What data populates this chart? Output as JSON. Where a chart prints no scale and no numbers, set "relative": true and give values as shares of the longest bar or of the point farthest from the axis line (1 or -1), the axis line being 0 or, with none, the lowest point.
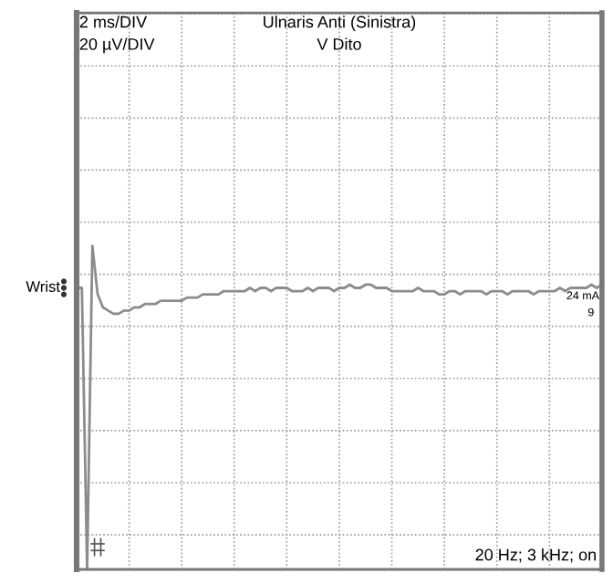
{
  "chart_data": {
    "type": "line",
    "title": "Ulnaris Anti (Sinistra)",
    "subtitle": "V Dito",
    "relative": true,
    "categories": [
      null,
      null,
      null,
      null,
      null,
      null,
      null,
      null,
      null,
      null,
      null,
      null,
      null,
      null,
      null,
      null,
      null,
      null,
      null,
      null,
      null,
      null,
      null,
      null,
      null,
      null,
      null,
      null,
      null,
      null,
      null,
      null,
      null,
      null,
      null,
      null,
      null,
      null,
      null,
      null,
      null,
      null,
      null,
      null,
      null,
      null,
      null,
      null,
      null,
      null,
      null,
      null,
      null,
      null,
      null,
      null,
      null,
      null,
      null,
      null,
      null,
      null,
      null,
      null,
      null,
      null,
      null,
      null,
      null,
      null,
      null,
      null,
      null,
      null,
      null,
      null,
      null,
      null,
      null,
      null,
      null,
      null,
      null,
      null,
      null,
      null,
      null,
      null,
      null,
      null,
      null,
      null,
      null,
      null,
      null,
      null,
      null,
      null,
      null,
      null,
      null
    ],
    "grid": true,
    "line_style": "solid",
    "series": [
      {
        "name": "Wrist",
        "color": "#8c8c8c",
        "values": [
          0.87,
          0.87,
          0.0,
          1.0,
          0.85,
          0.81,
          0.8,
          0.79,
          0.79,
          0.8,
          0.8,
          0.81,
          0.81,
          0.82,
          0.82,
          0.82,
          0.83,
          0.83,
          0.83,
          0.83,
          0.83,
          0.84,
          0.84,
          0.84,
          0.85,
          0.85,
          0.85,
          0.85,
          0.86,
          0.86,
          0.86,
          0.86,
          0.86,
          0.87,
          0.86,
          0.87,
          0.87,
          0.86,
          0.87,
          0.87,
          0.87,
          0.86,
          0.86,
          0.86,
          0.87,
          0.86,
          0.87,
          0.87,
          0.87,
          0.86,
          0.87,
          0.87,
          0.88,
          0.87,
          0.87,
          0.88,
          0.88,
          0.87,
          0.87,
          0.87,
          0.86,
          0.86,
          0.86,
          0.86,
          0.86,
          0.87,
          0.86,
          0.86,
          0.86,
          0.85,
          0.85,
          0.86,
          0.86,
          0.85,
          0.86,
          0.86,
          0.86,
          0.86,
          0.85,
          0.86,
          0.86,
          0.86,
          0.85,
          0.86,
          0.86,
          0.86,
          0.86,
          0.85,
          0.86,
          0.86,
          0.86,
          0.86,
          0.87,
          0.86,
          0.87,
          0.87,
          0.87,
          0.87,
          0.88,
          0.87,
          0.88
        ]
      }
    ],
    "annotations": [
      "2 ms/DIV",
      "20 µV/DIV",
      "24 mA",
      "9",
      "20 Hz; 3 kHz; on"
    ]
  }
}
